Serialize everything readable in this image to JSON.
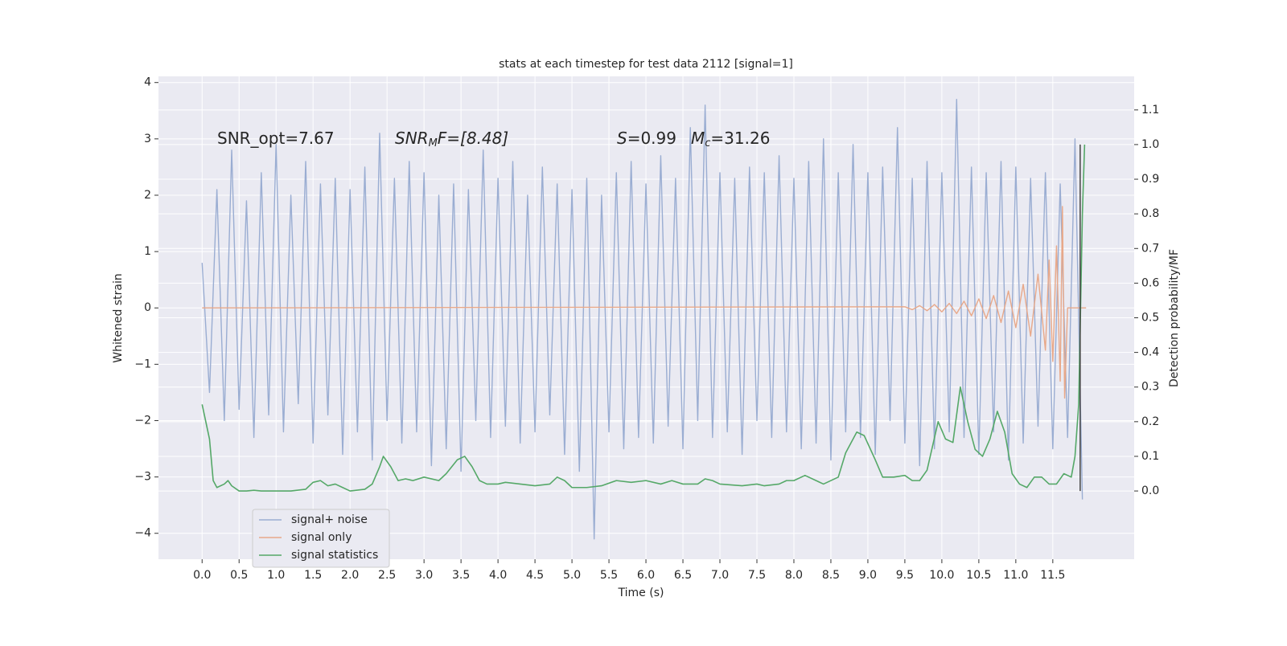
{
  "chart_data": {
    "type": "line",
    "title": "stats at each timestep for test data 2112 [signal=1]",
    "xlabel": "Time (s)",
    "ylabel": "Whitened strain",
    "y2label": "Detection probability/MF",
    "xlim": [
      -0.59,
      12.6
    ],
    "ylim": [
      -4.46,
      4.11
    ],
    "y2lim": [
      -0.197,
      1.197
    ],
    "xticks": [
      {
        "value": 0,
        "label": "0.0"
      },
      0.5,
      {
        "value": 1,
        "label": "1.0"
      },
      1.5,
      {
        "value": 2,
        "label": "2.0"
      },
      2.5,
      {
        "value": 3,
        "label": "3.0"
      },
      3.5,
      {
        "value": 4,
        "label": "4.0"
      },
      4.5,
      {
        "value": 5,
        "label": "5.0"
      },
      5.5,
      {
        "value": 6,
        "label": "6.0"
      },
      6.5,
      {
        "value": 7,
        "label": "7.0"
      },
      7.5,
      {
        "value": 8,
        "label": "8.0"
      },
      8.5,
      {
        "value": 9,
        "label": "9.0"
      },
      9.5,
      {
        "value": 10,
        "label": "10.0"
      },
      10.5,
      {
        "value": 11,
        "label": "11.0"
      },
      11.5
    ],
    "yticks": [
      {
        "value": -4,
        "label": "−4"
      },
      {
        "value": -3,
        "label": "−3"
      },
      {
        "value": -2,
        "label": "−2"
      },
      {
        "value": -1,
        "label": "−1"
      },
      0,
      1,
      2,
      3,
      4
    ],
    "y2ticks": [
      {
        "value": 0,
        "label": "0.0"
      },
      0.1,
      0.2,
      0.3,
      0.4,
      0.5,
      0.6,
      0.7,
      0.8,
      0.9,
      {
        "value": 1,
        "label": "1.0"
      },
      1.1
    ],
    "grid": true,
    "legend": "lower left",
    "annotations": [
      {
        "text": "SNR_opt=7.67"
      },
      {
        "text": "SNR",
        "sub": "M",
        "rest": "F=[8.48]"
      },
      {
        "text": "S",
        "rest": "=0.99"
      },
      {
        "text": "M",
        "sub": "c",
        "rest": "=31.26"
      }
    ],
    "series": [
      {
        "name": "signal+ noise",
        "color": "#9aadd2",
        "axis": "y",
        "x": [
          0,
          0.1,
          0.2,
          0.3,
          0.4,
          0.5,
          0.6,
          0.7,
          0.8,
          0.9,
          1,
          1.1,
          1.2,
          1.3,
          1.4,
          1.5,
          1.6,
          1.7,
          1.8,
          1.9,
          2,
          2.1,
          2.2,
          2.3,
          2.4,
          2.5,
          2.6,
          2.7,
          2.8,
          2.9,
          3,
          3.1,
          3.2,
          3.3,
          3.4,
          3.5,
          3.6,
          3.7,
          3.8,
          3.9,
          4,
          4.1,
          4.2,
          4.3,
          4.4,
          4.5,
          4.6,
          4.7,
          4.8,
          4.9,
          5,
          5.1,
          5.2,
          5.3,
          5.4,
          5.5,
          5.6,
          5.7,
          5.8,
          5.9,
          6,
          6.1,
          6.2,
          6.3,
          6.4,
          6.5,
          6.6,
          6.7,
          6.8,
          6.9,
          7,
          7.1,
          7.2,
          7.3,
          7.4,
          7.5,
          7.6,
          7.7,
          7.8,
          7.9,
          8,
          8.1,
          8.2,
          8.3,
          8.4,
          8.5,
          8.6,
          8.7,
          8.8,
          8.9,
          9,
          9.1,
          9.2,
          9.3,
          9.4,
          9.5,
          9.6,
          9.7,
          9.8,
          9.9,
          10,
          10.1,
          10.2,
          10.3,
          10.4,
          10.5,
          10.6,
          10.7,
          10.8,
          10.9,
          11,
          11.1,
          11.2,
          11.3,
          11.4,
          11.5,
          11.6,
          11.7,
          11.8,
          11.9
        ],
        "values": [
          0.8,
          -1.5,
          2.1,
          -2.0,
          2.8,
          -1.8,
          1.9,
          -2.3,
          2.4,
          -1.9,
          2.9,
          -2.2,
          2.0,
          -1.7,
          2.6,
          -2.4,
          2.2,
          -1.9,
          2.3,
          -2.6,
          2.1,
          -2.2,
          2.5,
          -2.7,
          3.1,
          -2.0,
          2.3,
          -2.4,
          2.6,
          -2.2,
          2.4,
          -2.8,
          2.0,
          -2.5,
          2.2,
          -2.9,
          2.1,
          -2.0,
          2.8,
          -2.3,
          2.3,
          -2.1,
          2.6,
          -2.4,
          2.0,
          -2.2,
          2.5,
          -1.9,
          2.2,
          -2.6,
          2.1,
          -2.9,
          2.3,
          -4.1,
          2.0,
          -2.2,
          2.4,
          -2.5,
          2.6,
          -2.3,
          2.2,
          -2.4,
          2.7,
          -2.1,
          2.3,
          -2.5,
          3.2,
          -2.0,
          3.6,
          -2.3,
          2.4,
          -2.2,
          2.3,
          -2.6,
          2.5,
          -2.0,
          2.4,
          -2.3,
          2.7,
          -2.2,
          2.3,
          -2.5,
          2.6,
          -2.4,
          3.0,
          -2.7,
          2.4,
          -2.2,
          2.9,
          -2.3,
          2.4,
          -2.6,
          2.5,
          -2.0,
          3.2,
          -2.4,
          2.3,
          -2.8,
          2.6,
          -2.5,
          2.4,
          -2.2,
          3.7,
          -2.3,
          2.5,
          -2.6,
          2.4,
          -2.2,
          2.6,
          -2.7,
          2.5,
          -2.4,
          2.3,
          -2.1,
          2.4,
          -2.5,
          2.2,
          -2.3,
          3.0,
          -3.4
        ]
      },
      {
        "name": "signal only",
        "color": "#e8a889",
        "axis": "y",
        "x": [
          0,
          9.5,
          9.6,
          9.7,
          9.8,
          9.9,
          10,
          10.1,
          10.2,
          10.3,
          10.4,
          10.5,
          10.6,
          10.7,
          10.8,
          10.9,
          11,
          11.1,
          11.2,
          11.3,
          11.4,
          11.45,
          11.5,
          11.55,
          11.6,
          11.63,
          11.66,
          11.7,
          11.95
        ],
        "values": [
          0,
          0.02,
          -0.03,
          0.04,
          -0.05,
          0.06,
          -0.07,
          0.08,
          -0.1,
          0.12,
          -0.14,
          0.16,
          -0.19,
          0.22,
          -0.26,
          0.3,
          -0.35,
          0.42,
          -0.5,
          0.6,
          -0.75,
          0.85,
          -0.95,
          1.1,
          -1.3,
          1.8,
          -1.6,
          0,
          0
        ]
      },
      {
        "name": "signal statistics",
        "color": "#55a868",
        "axis": "y2",
        "x": [
          0,
          0.1,
          0.15,
          0.2,
          0.3,
          0.35,
          0.4,
          0.5,
          0.6,
          0.7,
          0.8,
          1.0,
          1.2,
          1.4,
          1.5,
          1.6,
          1.7,
          1.8,
          1.9,
          2.0,
          2.2,
          2.3,
          2.4,
          2.45,
          2.55,
          2.65,
          2.75,
          2.85,
          3.0,
          3.2,
          3.3,
          3.45,
          3.55,
          3.65,
          3.75,
          3.85,
          4.0,
          4.1,
          4.3,
          4.5,
          4.7,
          4.8,
          4.9,
          5.0,
          5.2,
          5.4,
          5.6,
          5.8,
          6.0,
          6.2,
          6.35,
          6.5,
          6.7,
          6.8,
          6.9,
          7.0,
          7.3,
          7.5,
          7.6,
          7.8,
          7.9,
          8.0,
          8.15,
          8.3,
          8.4,
          8.6,
          8.7,
          8.85,
          8.95,
          9.1,
          9.2,
          9.35,
          9.5,
          9.6,
          9.7,
          9.8,
          9.95,
          10.05,
          10.15,
          10.25,
          10.35,
          10.45,
          10.55,
          10.65,
          10.75,
          10.85,
          10.95,
          11.05,
          11.15,
          11.25,
          11.35,
          11.45,
          11.55,
          11.65,
          11.75,
          11.8,
          11.85,
          11.9,
          11.93
        ],
        "values": [
          0.25,
          0.15,
          0.03,
          0.01,
          0.02,
          0.03,
          0.015,
          0.0,
          0.0,
          0.002,
          0.0,
          0.0,
          0.0,
          0.005,
          0.025,
          0.03,
          0.015,
          0.02,
          0.01,
          0.0,
          0.005,
          0.02,
          0.07,
          0.1,
          0.07,
          0.03,
          0.035,
          0.03,
          0.04,
          0.03,
          0.05,
          0.09,
          0.1,
          0.07,
          0.03,
          0.02,
          0.02,
          0.025,
          0.02,
          0.015,
          0.02,
          0.04,
          0.03,
          0.01,
          0.01,
          0.015,
          0.03,
          0.025,
          0.03,
          0.02,
          0.03,
          0.02,
          0.02,
          0.035,
          0.03,
          0.02,
          0.015,
          0.02,
          0.015,
          0.02,
          0.03,
          0.03,
          0.045,
          0.03,
          0.02,
          0.04,
          0.11,
          0.17,
          0.16,
          0.09,
          0.04,
          0.04,
          0.045,
          0.03,
          0.03,
          0.06,
          0.2,
          0.15,
          0.14,
          0.3,
          0.2,
          0.12,
          0.1,
          0.15,
          0.23,
          0.17,
          0.05,
          0.02,
          0.01,
          0.04,
          0.04,
          0.02,
          0.02,
          0.05,
          0.04,
          0.1,
          0.25,
          0.8,
          1.0
        ]
      }
    ],
    "vlines": [
      {
        "x": 11.87,
        "ymin": 0,
        "ymax": 1,
        "axis": "y2",
        "color": "#444444"
      }
    ]
  }
}
